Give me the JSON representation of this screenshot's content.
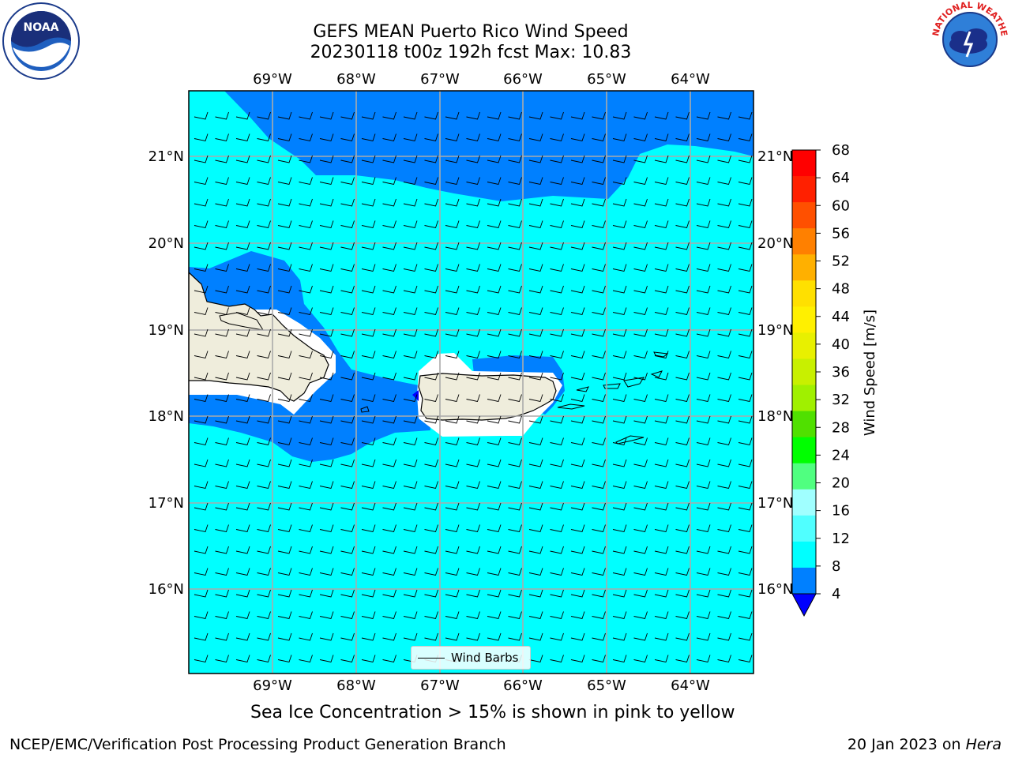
{
  "header": {
    "title_line1": "GEFS MEAN Puerto Rico Wind Speed",
    "title_line2": "20230118 t00z 192h fcst   Max: 10.83"
  },
  "logos": {
    "left": {
      "icon": "noaa-logo",
      "text": "NOAA"
    },
    "right": {
      "icon": "national-weather-service-logo",
      "text": "NATIONAL WEATHER SERVICE"
    }
  },
  "map": {
    "lon_labels": [
      "69°W",
      "68°W",
      "67°W",
      "66°W",
      "65°W",
      "64°W"
    ],
    "lat_labels": [
      "21°N",
      "20°N",
      "19°N",
      "18°N",
      "17°N",
      "16°N"
    ],
    "legend_label": "Wind Barbs",
    "colors": {
      "ocean_light": "#00ffff",
      "ocean_dark": "#0080ff",
      "land": "#efeddc"
    }
  },
  "colorbar": {
    "label": "Wind Speed [m/s]",
    "ticks": [
      "68",
      "64",
      "60",
      "56",
      "52",
      "48",
      "44",
      "40",
      "36",
      "32",
      "28",
      "24",
      "20",
      "16",
      "12",
      "8",
      "4"
    ],
    "colors": [
      "#ff0000",
      "#ff2000",
      "#ff5000",
      "#ff8000",
      "#ffb000",
      "#ffe000",
      "#fff000",
      "#e8f000",
      "#c8f000",
      "#a0f000",
      "#50e000",
      "#00ff00",
      "#50ff80",
      "#a0ffff",
      "#50ffff",
      "#00ffff",
      "#0080ff"
    ],
    "under_color": "#0000ff"
  },
  "footer": {
    "subtitle": "Sea Ice Concentration > 15% is shown in pink to yellow",
    "branch": "NCEP/EMC/Verification Post Processing Product Generation Branch",
    "date": "20 Jan 2023 on",
    "host": "Hera"
  }
}
